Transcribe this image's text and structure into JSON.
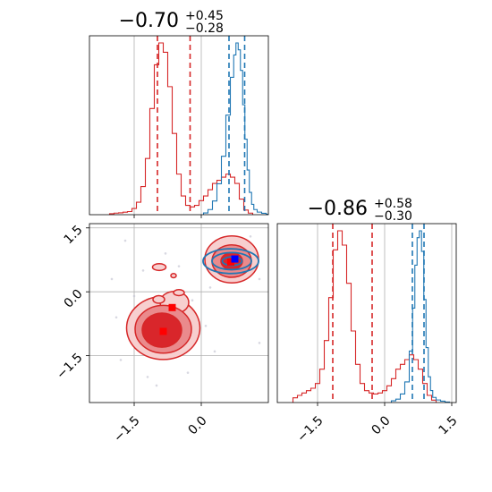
{
  "chart_data": {
    "type": "corner",
    "grid": true,
    "colors": {
      "red": "#d62728",
      "blue": "#1f77b4",
      "grid": "#b0b0b0",
      "marker_red": "#ff0000",
      "marker_blue": "#0000ff"
    },
    "panels": [
      {
        "id": "hist-param-1",
        "type": "step-histogram",
        "title": {
          "main": "−0.70",
          "sup": "+0.45",
          "sub": "−0.28"
        },
        "xlim": [
          -2.5,
          1.5
        ],
        "xticks": [
          -1.5,
          0.0
        ],
        "show_xticklabels": false,
        "series": [
          {
            "name": "",
            "color": "red",
            "quantile_lines": [
              -0.98,
              -0.25
            ],
            "bin_centers": [
              -2.0,
              -1.9,
              -1.8,
              -1.7,
              -1.6,
              -1.5,
              -1.4,
              -1.3,
              -1.2,
              -1.1,
              -1.0,
              -0.9,
              -0.8,
              -0.7,
              -0.6,
              -0.5,
              -0.4,
              -0.3,
              -0.2,
              -0.1,
              0.0,
              0.1,
              0.2,
              0.3,
              0.4,
              0.5,
              0.6,
              0.7,
              0.8,
              0.9,
              1.0,
              1.1
            ],
            "counts": [
              0.3,
              0.5,
              0.6,
              0.8,
              1.0,
              2.0,
              4.0,
              9.0,
              18.0,
              34.0,
              48.0,
              55.0,
              52.0,
              41.0,
              26.0,
              13.0,
              6.0,
              3.0,
              2.5,
              3.0,
              4.5,
              6.0,
              8.0,
              10.0,
              11.0,
              12.0,
              13.0,
              12.0,
              10.0,
              5.0,
              1.5,
              0.5
            ]
          },
          {
            "name": "",
            "color": "blue",
            "quantile_lines": [
              0.62,
              0.97
            ],
            "bin_centers": [
              0.1,
              0.2,
              0.3,
              0.4,
              0.5,
              0.6,
              0.7,
              0.75,
              0.8,
              0.85,
              0.9,
              0.95,
              1.0,
              1.05,
              1.1,
              1.15,
              1.2,
              1.3,
              1.4,
              1.5
            ],
            "counts": [
              1.0,
              3.0,
              8.0,
              18.0,
              34.0,
              58.0,
              80.0,
              93.0,
              100.0,
              96.0,
              84.0,
              64.0,
              44.0,
              26.0,
              13.0,
              6.0,
              3.0,
              1.5,
              0.8,
              0.3
            ]
          }
        ]
      },
      {
        "id": "hist-param-2",
        "type": "step-histogram",
        "title": {
          "main": "−0.86",
          "sup": "+0.58",
          "sub": "−0.30"
        },
        "xlim": [
          -2.4,
          1.6
        ],
        "xticks": [
          -1.5,
          0.0,
          1.5
        ],
        "xticklabels": [
          "−1.5",
          "0.0",
          "1.5"
        ],
        "series": [
          {
            "name": "",
            "color": "red",
            "quantile_lines": [
              -1.16,
              -0.28
            ],
            "bin_centers": [
              -2.0,
              -1.9,
              -1.8,
              -1.7,
              -1.6,
              -1.5,
              -1.4,
              -1.3,
              -1.2,
              -1.1,
              -1.0,
              -0.9,
              -0.8,
              -0.7,
              -0.6,
              -0.5,
              -0.4,
              -0.3,
              -0.2,
              -0.1,
              0.0,
              0.1,
              0.2,
              0.3,
              0.4,
              0.5,
              0.6,
              0.7,
              0.8,
              0.9,
              1.0,
              1.1
            ],
            "counts": [
              1.0,
              1.5,
              2.0,
              2.5,
              3.0,
              4.0,
              7.0,
              13.0,
              22.0,
              32.0,
              36.0,
              33.0,
              25.0,
              15.0,
              8.0,
              4.0,
              2.5,
              2.0,
              1.8,
              2.0,
              2.5,
              3.5,
              5.0,
              7.0,
              8.0,
              9.0,
              10.0,
              9.0,
              7.0,
              4.0,
              1.5,
              0.5
            ]
          },
          {
            "name": "",
            "color": "blue",
            "quantile_lines": [
              0.62,
              0.88
            ],
            "bin_centers": [
              0.2,
              0.3,
              0.4,
              0.5,
              0.6,
              0.65,
              0.7,
              0.75,
              0.8,
              0.85,
              0.9,
              0.95,
              1.0,
              1.05,
              1.1,
              1.2,
              1.3,
              1.4
            ],
            "counts": [
              1.0,
              2.0,
              5.0,
              12.0,
              30.0,
              55.0,
              80.0,
              96.0,
              100.0,
              88.0,
              60.0,
              32.0,
              15.0,
              7.0,
              3.0,
              1.5,
              0.8,
              0.3
            ]
          }
        ]
      },
      {
        "id": "joint-param-1-2",
        "type": "2d-contour",
        "xlim": [
          -2.5,
          1.5
        ],
        "ylim": [
          -2.6,
          1.6
        ],
        "xticks": [
          -1.5,
          0.0
        ],
        "xticklabels": [
          "−1.5",
          "0.0"
        ],
        "yticks": [
          1.5,
          0.0,
          -1.5
        ],
        "yticklabels": [
          "1.5",
          "0.0",
          "−1.5"
        ],
        "scatter_points": [
          [
            -1.7,
            1.2
          ],
          [
            -1.5,
            -0.1
          ],
          [
            -1.9,
            -0.6
          ],
          [
            -1.3,
            0.5
          ],
          [
            -0.2,
            -0.2
          ],
          [
            0.1,
            -0.8
          ],
          [
            -1.8,
            -1.6
          ],
          [
            -1.2,
            -2.0
          ],
          [
            -0.3,
            -1.9
          ],
          [
            0.2,
            0.1
          ],
          [
            1.3,
            -1.2
          ],
          [
            1.1,
            1.3
          ],
          [
            -0.8,
            0.9
          ],
          [
            -2.0,
            0.3
          ],
          [
            -0.5,
            0.6
          ],
          [
            0.3,
            -1.4
          ],
          [
            1.3,
            0.3
          ],
          [
            -1.0,
            -2.2
          ]
        ],
        "levels": [
          {
            "fill": "#f7cfcf",
            "blobs": [
              {
                "cx": -0.85,
                "cy": -0.85,
                "rx": 0.82,
                "ry": 0.74
              },
              {
                "cx": -0.6,
                "cy": -0.25,
                "rx": 0.32,
                "ry": 0.26
              },
              {
                "cx": -0.94,
                "cy": 0.58,
                "rx": 0.15,
                "ry": 0.08
              },
              {
                "cx": -0.95,
                "cy": -0.18,
                "rx": 0.13,
                "ry": 0.09
              },
              {
                "cx": -0.5,
                "cy": -0.02,
                "rx": 0.12,
                "ry": 0.07
              },
              {
                "cx": -0.62,
                "cy": 0.38,
                "rx": 0.06,
                "ry": 0.05
              },
              {
                "cx": 0.68,
                "cy": 0.76,
                "rx": 0.6,
                "ry": 0.55
              }
            ]
          },
          {
            "fill": "#ea8a8c",
            "blobs": [
              {
                "cx": -0.85,
                "cy": -0.88,
                "rx": 0.63,
                "ry": 0.56
              },
              {
                "cx": 0.68,
                "cy": 0.72,
                "rx": 0.44,
                "ry": 0.38
              }
            ]
          },
          {
            "fill": "#d9262b",
            "blobs": [
              {
                "cx": -0.88,
                "cy": -0.9,
                "rx": 0.44,
                "ry": 0.4
              },
              {
                "cx": 0.68,
                "cy": 0.72,
                "rx": 0.24,
                "ry": 0.2
              }
            ]
          }
        ],
        "blue_contours": [
          {
            "cx": 0.66,
            "cy": 0.72,
            "rx": 0.62,
            "ry": 0.29
          },
          {
            "cx": 0.68,
            "cy": 0.72,
            "rx": 0.44,
            "ry": 0.2
          },
          {
            "cx": 0.69,
            "cy": 0.72,
            "rx": 0.22,
            "ry": 0.1
          }
        ],
        "markers": [
          {
            "color": "marker_red",
            "x": -0.85,
            "y": -0.93
          },
          {
            "color": "marker_red",
            "x": -0.65,
            "y": -0.37
          },
          {
            "color": "marker_red",
            "x": 0.66,
            "y": 0.7
          },
          {
            "color": "marker_blue",
            "x": 0.75,
            "y": 0.77
          }
        ]
      }
    ]
  }
}
